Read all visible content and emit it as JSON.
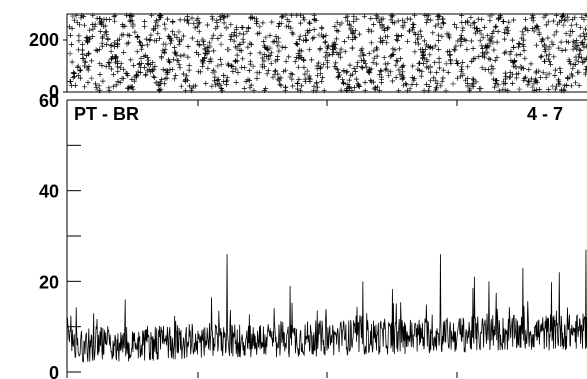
{
  "chart_data": [
    {
      "type": "scatter",
      "panel": "top",
      "marker": "+",
      "ylim": [
        0,
        300
      ],
      "yticks": [
        "200",
        "0"
      ],
      "ytick_values": [
        200,
        0
      ],
      "n_points": 1400,
      "color": "#000000",
      "secondary_color": "#777777"
    },
    {
      "type": "line",
      "panel": "bottom",
      "label_left": "PT - BR",
      "label_right": "4 - 7",
      "ylim": [
        0,
        60
      ],
      "yticks": [
        "60",
        "40",
        "20",
        "0"
      ],
      "ytick_values": [
        60,
        40,
        20,
        0
      ],
      "y_minor_ticks": [
        10,
        30,
        50
      ],
      "baseline_mean": 6,
      "baseline_max_typical": 15,
      "spike_max": 27,
      "n_samples": 1100,
      "color": "#000000"
    }
  ]
}
